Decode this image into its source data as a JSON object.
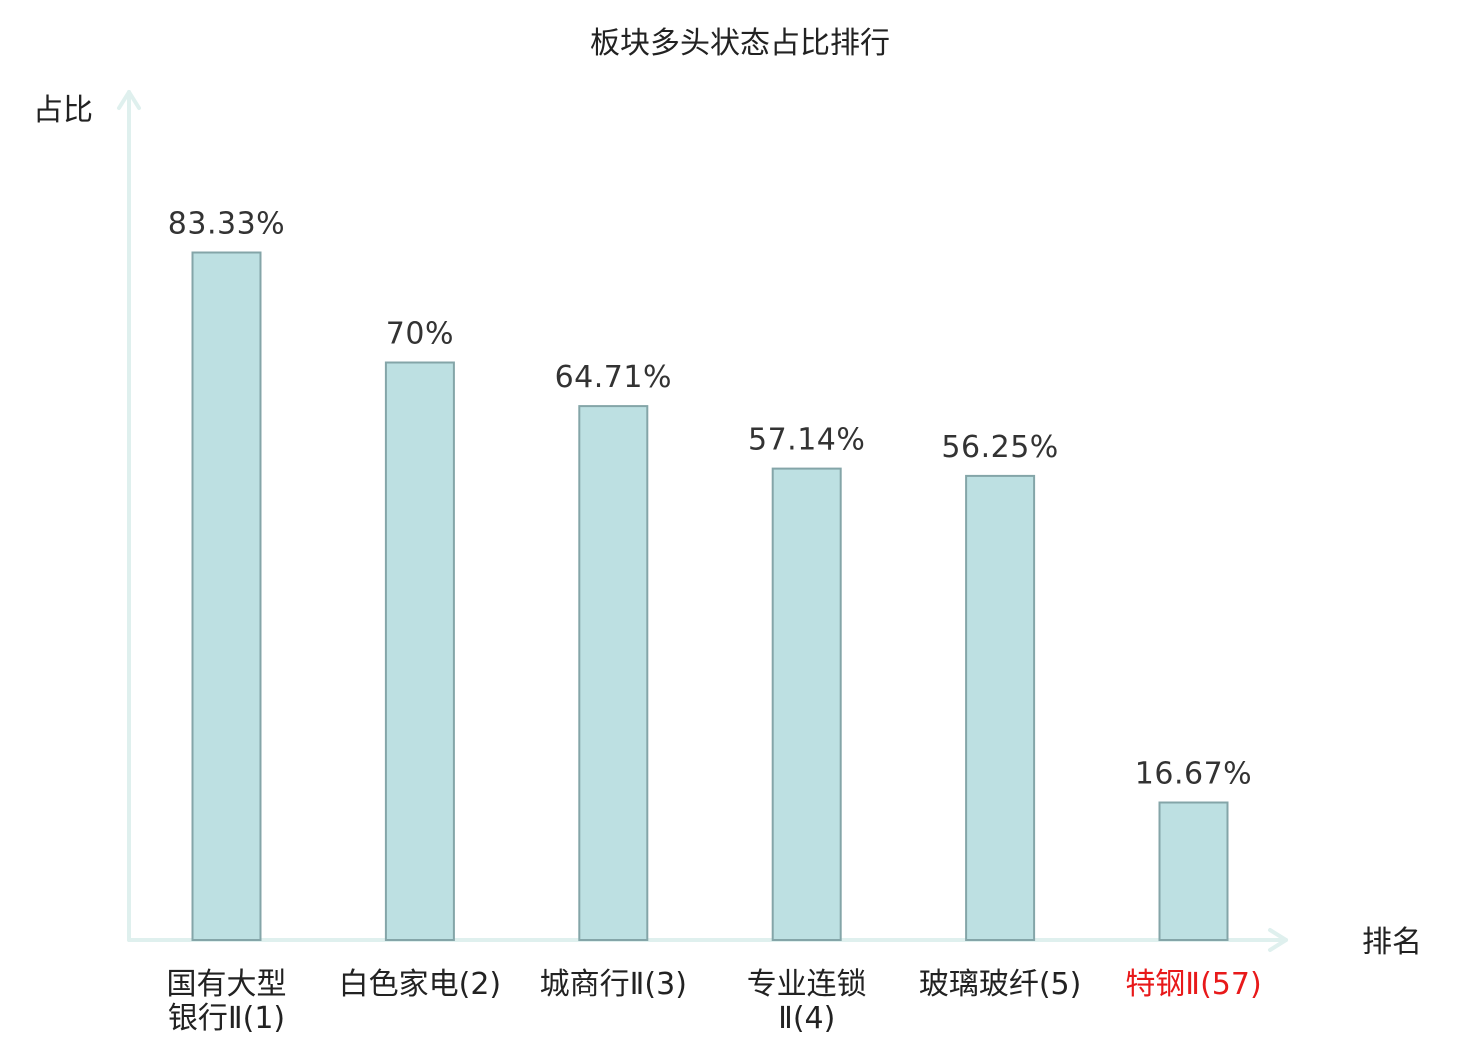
{
  "chart_data": {
    "type": "bar",
    "title": "板块多头状态占比排行",
    "ylabel": "占比",
    "xlabel": "排名",
    "ylim": [
      0,
      100
    ],
    "categories": [
      {
        "lines": [
          "国有大型",
          "银行Ⅱ(1)"
        ],
        "highlight": false
      },
      {
        "lines": [
          "白色家电(2)"
        ],
        "highlight": false
      },
      {
        "lines": [
          "城商行Ⅱ(3)"
        ],
        "highlight": false
      },
      {
        "lines": [
          "专业连锁",
          "Ⅱ(4)"
        ],
        "highlight": false
      },
      {
        "lines": [
          "玻璃玻纤(5)"
        ],
        "highlight": false
      },
      {
        "lines": [
          "特钢Ⅱ(57)"
        ],
        "highlight": true
      }
    ],
    "values": [
      83.33,
      70,
      64.71,
      57.14,
      56.25,
      16.67
    ],
    "value_labels": [
      "83.33%",
      "70%",
      "64.71%",
      "57.14%",
      "56.25%",
      "16.67%"
    ],
    "grid": false,
    "legend": "none"
  },
  "colors": {
    "bar_fill": "#bde0e2",
    "bar_stroke": "#84a5a8",
    "axis": "#dff0ee",
    "text": "#222222",
    "highlight": "#e8191a"
  }
}
